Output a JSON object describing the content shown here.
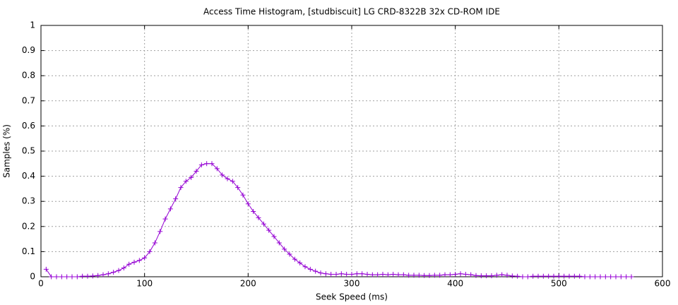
{
  "chart_data": {
    "type": "line",
    "title": "Access Time Histogram, [studbiscuit] LG CRD-8322B 32x CD-ROM IDE",
    "x_label": "Seek Speed (ms)",
    "y_label": "Samples (%)",
    "x": [
      5,
      10,
      15,
      20,
      25,
      30,
      35,
      40,
      45,
      50,
      55,
      60,
      65,
      70,
      75,
      80,
      85,
      90,
      95,
      100,
      105,
      110,
      115,
      120,
      125,
      130,
      135,
      140,
      145,
      150,
      155,
      160,
      165,
      170,
      175,
      180,
      185,
      190,
      195,
      200,
      205,
      210,
      215,
      220,
      225,
      230,
      235,
      240,
      245,
      250,
      255,
      260,
      265,
      270,
      275,
      280,
      285,
      290,
      295,
      300,
      305,
      310,
      315,
      320,
      325,
      330,
      335,
      340,
      345,
      350,
      355,
      360,
      365,
      370,
      375,
      380,
      385,
      390,
      395,
      400,
      405,
      410,
      415,
      420,
      425,
      430,
      435,
      440,
      445,
      450,
      455,
      460,
      465,
      470,
      475,
      480,
      485,
      490,
      495,
      500,
      505,
      510,
      515,
      520,
      525,
      530,
      535,
      540,
      545,
      550,
      555,
      560,
      565,
      570
    ],
    "series": [
      {
        "color": "#9400d3",
        "values": [
          0.03,
          0,
          0,
          0,
          0,
          0,
          0,
          0.002,
          0.002,
          0.003,
          0.005,
          0.008,
          0.012,
          0.018,
          0.025,
          0.035,
          0.05,
          0.058,
          0.065,
          0.075,
          0.1,
          0.135,
          0.18,
          0.23,
          0.27,
          0.31,
          0.355,
          0.38,
          0.395,
          0.42,
          0.445,
          0.45,
          0.45,
          0.43,
          0.405,
          0.39,
          0.38,
          0.355,
          0.325,
          0.29,
          0.26,
          0.235,
          0.21,
          0.185,
          0.16,
          0.135,
          0.11,
          0.09,
          0.07,
          0.055,
          0.04,
          0.03,
          0.022,
          0.015,
          0.012,
          0.01,
          0.01,
          0.012,
          0.01,
          0.01,
          0.012,
          0.012,
          0.01,
          0.008,
          0.008,
          0.01,
          0.008,
          0.01,
          0.008,
          0.008,
          0.006,
          0.006,
          0.006,
          0.005,
          0.005,
          0.006,
          0.006,
          0.008,
          0.008,
          0.01,
          0.012,
          0.01,
          0.008,
          0.005,
          0.004,
          0.004,
          0.004,
          0.006,
          0.008,
          0.006,
          0.003,
          0.002,
          0,
          0,
          0.002,
          0.002,
          0.002,
          0.002,
          0.002,
          0.002,
          0.002,
          0.002,
          0.002,
          0.002,
          0,
          0,
          0,
          0,
          0,
          0,
          0,
          0,
          0,
          0
        ]
      }
    ],
    "xlim": [
      0,
      600
    ],
    "xticks": [
      0,
      100,
      200,
      300,
      400,
      500,
      600
    ],
    "ylim": [
      0,
      1
    ],
    "yticks": [
      0,
      0.1,
      0.2,
      0.3,
      0.4,
      0.5,
      0.6,
      0.7,
      0.8,
      0.9,
      1
    ],
    "grid": true
  }
}
